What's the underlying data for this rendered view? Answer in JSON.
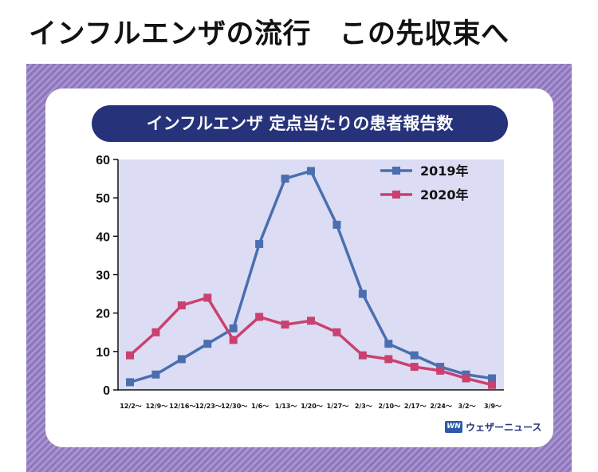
{
  "headline": "インフルエンザの流行　この先収束へ",
  "brand": {
    "mark": "WN",
    "name": "ウェザーニュース"
  },
  "colors": {
    "stripe_a": "#8e76bd",
    "stripe_b": "#a894cf",
    "title_bg": "#26337a",
    "plot_bg": "#dcdcf4",
    "series_2019": "#4a6fb0",
    "series_2020": "#c9416f"
  },
  "chart_data": {
    "type": "line",
    "title": "インフルエンザ 定点当たりの患者報告数",
    "categories": [
      "12/2～",
      "12/9～",
      "12/16～",
      "12/23～",
      "12/30～",
      "1/6～",
      "1/13～",
      "1/20～",
      "1/27～",
      "2/3～",
      "2/10～",
      "2/17～",
      "2/24～",
      "3/2～",
      "3/9～"
    ],
    "series": [
      {
        "name": "2019年",
        "color": "#4a6fb0",
        "values": [
          2,
          4,
          8,
          12,
          16,
          38,
          55,
          57,
          43,
          25,
          12,
          9,
          6,
          4,
          3
        ]
      },
      {
        "name": "2020年",
        "color": "#c9416f",
        "values": [
          9,
          15,
          22,
          24,
          13,
          19,
          17,
          18,
          15,
          9,
          8,
          6,
          5,
          3,
          1.3
        ]
      }
    ],
    "yticks": [
      0,
      10,
      20,
      30,
      40,
      50,
      60
    ],
    "ylim": [
      0,
      60
    ],
    "xlabel": "",
    "ylabel": "",
    "legend": "top-right"
  }
}
